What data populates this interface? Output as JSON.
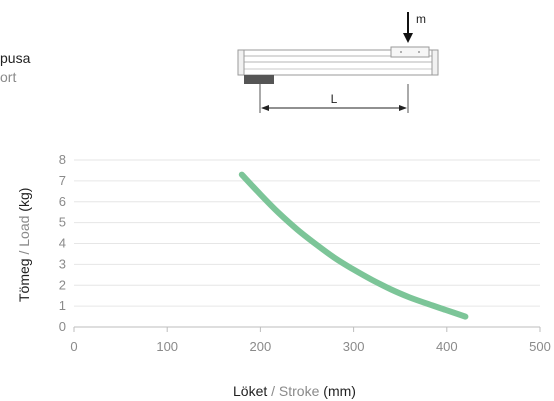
{
  "header_fragment": {
    "line1": "pusa",
    "line2": "ort"
  },
  "diagram": {
    "mass_label": "m",
    "length_label": "L"
  },
  "chart_data": {
    "type": "line",
    "title": "",
    "xlabel": {
      "primary": "Löket",
      "separator": " / ",
      "secondary": "Stroke",
      "unit": " (mm)"
    },
    "ylabel": {
      "primary": "Tömeg",
      "separator": " / ",
      "secondary": "Load",
      "unit": " (kg)"
    },
    "xlim": [
      0,
      500
    ],
    "ylim": [
      0,
      8
    ],
    "x_ticks": [
      0,
      100,
      200,
      300,
      400,
      500
    ],
    "y_ticks": [
      0,
      1,
      2,
      3,
      4,
      5,
      6,
      7,
      8
    ],
    "grid": "horizontal",
    "series": [
      {
        "color": "#7cc598",
        "x": [
          180,
          200,
          220,
          240,
          260,
          280,
          300,
          320,
          340,
          360,
          380,
          400,
          420
        ],
        "y": [
          7.3,
          6.35,
          5.45,
          4.65,
          3.95,
          3.3,
          2.75,
          2.25,
          1.8,
          1.42,
          1.1,
          0.8,
          0.5
        ]
      }
    ]
  }
}
